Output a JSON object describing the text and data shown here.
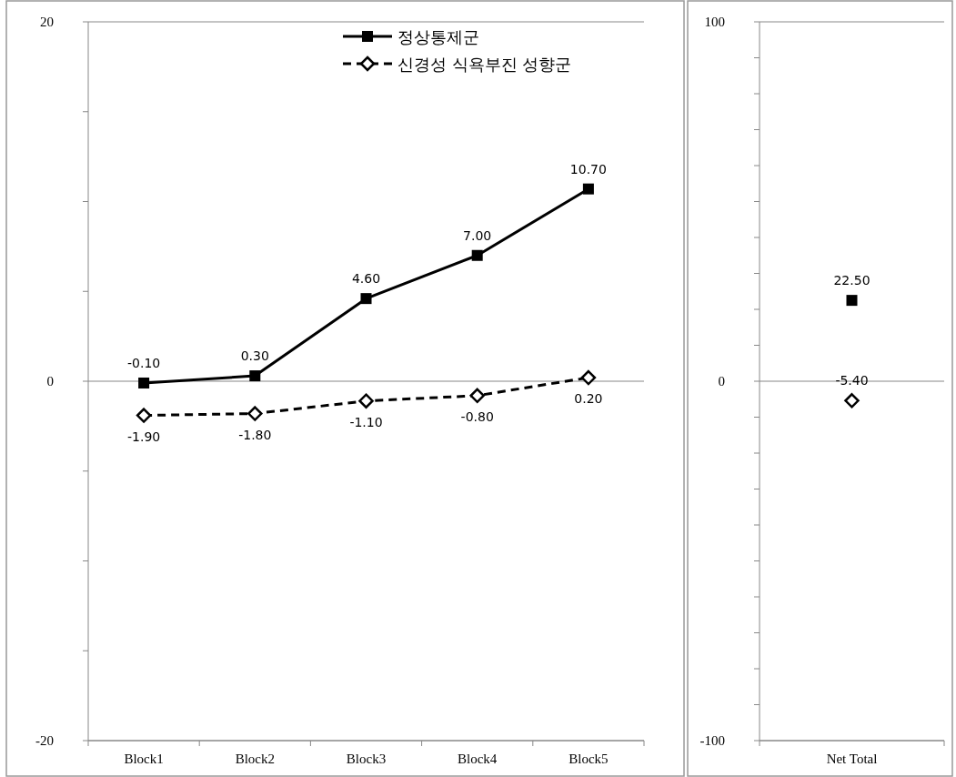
{
  "chart_data": [
    {
      "type": "line",
      "categories": [
        "Block1",
        "Block2",
        "Block3",
        "Block4",
        "Block5"
      ],
      "ylim": [
        -20,
        20
      ],
      "yticks": [
        -20,
        {
          "value": -15,
          "label": null
        },
        {
          "value": -10,
          "label": null
        },
        {
          "value": -5,
          "label": null
        },
        0,
        {
          "value": 5,
          "label": null
        },
        {
          "value": 10,
          "label": null
        },
        {
          "value": 15,
          "label": null
        },
        20
      ],
      "grid": "y",
      "legend": "top right",
      "series": [
        {
          "name": "정상통제군",
          "color": "#000000",
          "marker": "square",
          "line_style": "solid",
          "values": [
            -0.1,
            0.3,
            4.6,
            7.0,
            10.7
          ],
          "value_labels": [
            "-0.10",
            "0.30",
            "4.60",
            "7.00",
            "10.70"
          ]
        },
        {
          "name": "신경성 식욕부진 성향군",
          "color": "#000000",
          "marker": "diamond",
          "line_style": "dashed",
          "values": [
            -1.9,
            -1.8,
            -1.1,
            -0.8,
            0.2
          ],
          "value_labels": [
            "-1.90",
            "-1.80",
            "-1.10",
            "-0.80",
            "0.20"
          ]
        }
      ]
    },
    {
      "type": "line",
      "categories": [
        "Net Total"
      ],
      "ylim": [
        -100,
        100
      ],
      "yticks": [
        -100,
        {
          "value": -90,
          "label": null
        },
        {
          "value": -80,
          "label": null
        },
        {
          "value": -70,
          "label": null
        },
        {
          "value": -60,
          "label": null
        },
        {
          "value": -50,
          "label": null
        },
        {
          "value": -40,
          "label": null
        },
        {
          "value": -30,
          "label": null
        },
        {
          "value": -20,
          "label": null
        },
        {
          "value": -10,
          "label": null
        },
        0,
        {
          "value": 10,
          "label": null
        },
        {
          "value": 20,
          "label": null
        },
        {
          "value": 30,
          "label": null
        },
        {
          "value": 40,
          "label": null
        },
        {
          "value": 50,
          "label": null
        },
        {
          "value": 60,
          "label": null
        },
        {
          "value": 70,
          "label": null
        },
        {
          "value": 80,
          "label": null
        },
        {
          "value": 90,
          "label": null
        },
        100
      ],
      "grid": "y",
      "legend": false,
      "series": [
        {
          "color": "#000000",
          "marker": "square",
          "values": [
            22.5
          ],
          "value_labels": [
            "22.50"
          ]
        },
        {
          "color": "#000000",
          "marker": "diamond",
          "values": [
            -5.4
          ],
          "value_labels": [
            "-5.40"
          ]
        }
      ]
    }
  ]
}
